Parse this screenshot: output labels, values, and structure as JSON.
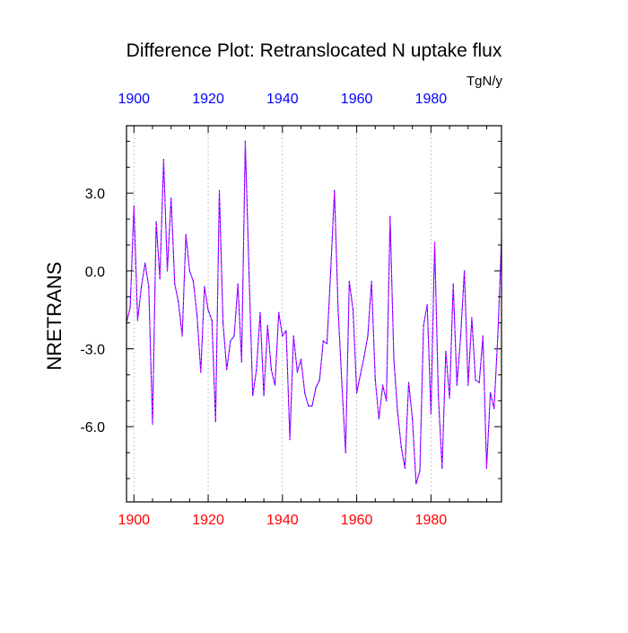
{
  "chart_data": {
    "type": "line",
    "title": "Difference Plot: Retranslocated N uptake flux",
    "units": "TgN/y",
    "ylabel": "NRETRANS",
    "xlabel": "",
    "xlim": [
      1898,
      1999
    ],
    "ylim": [
      -8.9,
      5.6
    ],
    "x_ticks": [
      1900,
      1920,
      1940,
      1960,
      1980
    ],
    "x_tick_labels": [
      "1900",
      "1920",
      "1940",
      "1960",
      "1980"
    ],
    "y_ticks": [
      3.0,
      0.0,
      -3.0,
      -6.0
    ],
    "y_tick_labels": [
      "3.0",
      "0.0",
      "-3.0",
      "-6.0"
    ],
    "grid": "vertical dotted lines at major x ticks",
    "colors": {
      "top_axis_labels": "#0000ff",
      "bottom_axis_labels": "#ff0000",
      "series_a": "#0000ff",
      "series_b": "#ff00ff",
      "axes": "#000000",
      "grid": "#b4b4b4"
    },
    "series": [
      {
        "name": "difference",
        "x_start": 1898,
        "x_step": 1,
        "values": [
          -2.0,
          -1.4,
          2.5,
          -1.9,
          -0.6,
          0.3,
          -0.6,
          -5.9,
          1.9,
          -0.3,
          4.3,
          0.0,
          2.8,
          -0.5,
          -1.2,
          -2.5,
          1.4,
          0.0,
          -0.4,
          -1.7,
          -3.9,
          -0.6,
          -1.5,
          -1.9,
          -5.8,
          3.1,
          -2.0,
          -3.8,
          -2.7,
          -2.5,
          -0.5,
          -3.5,
          5.0,
          -0.1,
          -4.8,
          -3.8,
          -1.6,
          -4.8,
          -2.1,
          -3.8,
          -4.4,
          -1.6,
          -2.5,
          -2.3,
          -6.5,
          -2.5,
          -3.9,
          -3.4,
          -4.7,
          -5.2,
          -5.2,
          -4.5,
          -4.2,
          -2.7,
          -2.8,
          0.0,
          3.1,
          -1.5,
          -4.3,
          -7.0,
          -0.4,
          -1.5,
          -4.7,
          -4.0,
          -3.3,
          -2.5,
          -0.4,
          -4.2,
          -5.7,
          -4.4,
          -5.0,
          2.1,
          -3.4,
          -5.4,
          -6.8,
          -7.6,
          -4.3,
          -5.7,
          -8.2,
          -7.7,
          -2.1,
          -1.3,
          -5.5,
          1.1,
          -4.8,
          -7.6,
          -3.1,
          -4.9,
          -0.5,
          -4.4,
          -2.5,
          0.0,
          -4.4,
          -1.8,
          -4.2,
          -4.3,
          -2.5,
          -7.6,
          -4.7,
          -5.3,
          -2.5,
          1.2
        ]
      }
    ]
  }
}
